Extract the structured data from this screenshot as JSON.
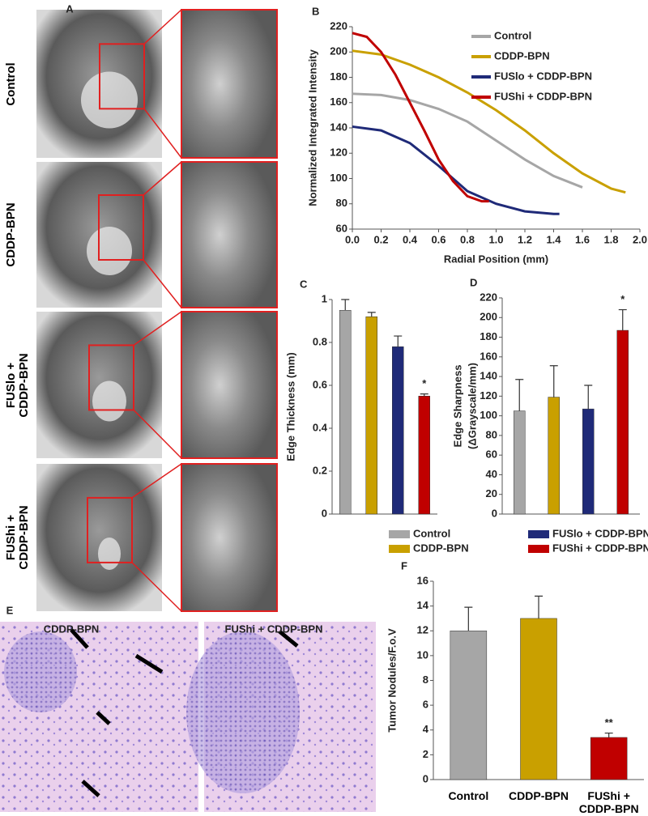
{
  "panel_a": {
    "panel": "A",
    "rows": [
      "Control",
      "CDDP-BPN",
      "FUSlo +\nCDDP-BPN",
      "FUShi +\nCDDP-BPN"
    ]
  },
  "panel_e": {
    "panel": "E",
    "labels": [
      "CDDP-BPN",
      "FUShi + CDDP-BPN"
    ]
  },
  "chart_data": [
    {
      "type": "line",
      "panel": "B",
      "x_label": "Radial Position (mm)",
      "y_label": "Normalized Integrated Intensity",
      "xlim": [
        0,
        2.0
      ],
      "xticks": [
        {
          "value": 0,
          "label": "0.0"
        },
        0.2,
        0.4,
        0.6,
        0.8,
        {
          "value": 1,
          "label": "1.0"
        },
        1.2,
        1.4,
        1.6,
        1.8,
        {
          "value": 2,
          "label": "2.0"
        }
      ],
      "ylim": [
        60,
        220
      ],
      "yticks": [
        60,
        80,
        100,
        120,
        140,
        160,
        180,
        200,
        220
      ],
      "series": [
        {
          "name": "Control",
          "color": "#a6a6a6",
          "x": [
            0,
            0.2,
            0.4,
            0.6,
            0.8,
            1.0,
            1.2,
            1.4,
            1.6
          ],
          "values": [
            167,
            166,
            162,
            155,
            145,
            130,
            115,
            102,
            93
          ]
        },
        {
          "name": "CDDP-BPN",
          "color": "#c9a000",
          "x": [
            0,
            0.2,
            0.4,
            0.6,
            0.8,
            1.0,
            1.2,
            1.4,
            1.6,
            1.8,
            1.9
          ],
          "values": [
            201,
            198,
            190,
            180,
            168,
            154,
            138,
            120,
            104,
            92,
            89
          ]
        },
        {
          "name": "FUSlo + CDDP-BPN",
          "color": "#1f2a78",
          "x": [
            0,
            0.2,
            0.4,
            0.6,
            0.8,
            1.0,
            1.2,
            1.4,
            1.44
          ],
          "values": [
            141,
            138,
            128,
            110,
            90,
            80,
            74,
            72,
            72
          ]
        },
        {
          "name": "FUShi + CDDP-BPN",
          "color": "#c00000",
          "x": [
            0,
            0.1,
            0.2,
            0.3,
            0.4,
            0.5,
            0.6,
            0.7,
            0.8,
            0.9,
            0.95
          ],
          "values": [
            215,
            212,
            200,
            182,
            160,
            138,
            115,
            98,
            86,
            82,
            82
          ]
        }
      ]
    },
    {
      "type": "bar",
      "panel": "C",
      "y_label": "Edge Thickness (mm)",
      "categories": [
        "Control",
        "CDDP-BPN",
        "FUSlo + CDDP-BPN",
        "FUShi + CDDP-BPN"
      ],
      "colors": [
        "#a6a6a6",
        "#c9a000",
        "#1f2a78",
        "#c00000"
      ],
      "values": [
        0.95,
        0.92,
        0.78,
        0.55
      ],
      "errors": [
        0.05,
        0.02,
        0.05,
        0.01
      ],
      "ylim": [
        0,
        1
      ],
      "yticks": [
        0,
        0.2,
        0.4,
        0.6,
        0.8,
        1
      ],
      "annotation": "*"
    },
    {
      "type": "bar",
      "panel": "D",
      "y_label": [
        "Edge Sharpness",
        "(ΔGrayscale/mm)"
      ],
      "colors": [
        "#a6a6a6",
        "#c9a000",
        "#1f2a78",
        "#c00000"
      ],
      "values": [
        105,
        119,
        107,
        187
      ],
      "errors": [
        32,
        32,
        24,
        21
      ],
      "ylim": [
        0,
        220
      ],
      "yticks": [
        0,
        20,
        40,
        60,
        80,
        100,
        120,
        140,
        160,
        180,
        200,
        220
      ],
      "annotation": "*"
    },
    {
      "type": "bar",
      "panel": "F",
      "y_label": "Tumor Nodules/F.o.V",
      "categories": [
        "Control",
        "CDDP-BPN",
        "FUShi +\nCDDP-BPN"
      ],
      "colors": [
        "#a6a6a6",
        "#c9a000",
        "#c00000"
      ],
      "values": [
        12,
        13,
        3.4
      ],
      "errors": [
        1.9,
        1.8,
        0.35
      ],
      "ylim": [
        0,
        16
      ],
      "yticks": [
        0,
        2,
        4,
        6,
        8,
        10,
        12,
        14,
        16
      ],
      "annotation": "**"
    }
  ]
}
